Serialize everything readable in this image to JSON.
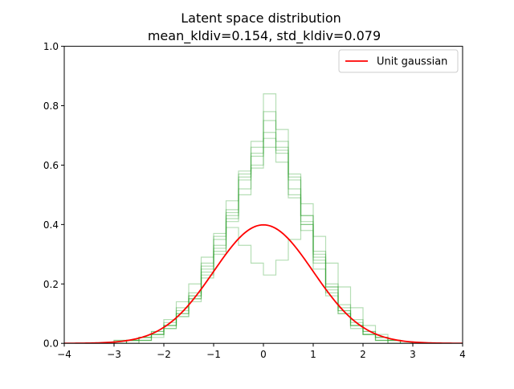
{
  "figure": {
    "title_line1": "Latent space distribution",
    "title_line2": "mean_kldiv=0.154, std_kldiv=0.079"
  },
  "chart_data": {
    "type": "line",
    "title": "Latent space distribution\nmean_kldiv=0.154, std_kldiv=0.079",
    "xlabel": "",
    "ylabel": "",
    "xlim": [
      -4,
      4
    ],
    "ylim": [
      0,
      1.0
    ],
    "xticks": [
      "−4",
      "−3",
      "−2",
      "−1",
      "0",
      "1",
      "2",
      "3",
      "4"
    ],
    "yticks": [
      "0.0",
      "0.2",
      "0.4",
      "0.6",
      "0.8",
      "1.0"
    ],
    "grid": false,
    "legend": {
      "placement": "upper right",
      "entries": [
        "Unit gaussian"
      ]
    },
    "colors": {
      "gaussian": "#ff0000",
      "histograms": "#2ca02c",
      "histogram_alpha": 0.35
    },
    "series": [
      {
        "name": "Unit gaussian",
        "kind": "line",
        "mean": 0,
        "std": 1,
        "x": [
          -4,
          -3.5,
          -3,
          -2.5,
          -2,
          -1.5,
          -1,
          -0.5,
          0,
          0.5,
          1,
          1.5,
          2,
          2.5,
          3,
          3.5,
          4
        ],
        "y": [
          0.0001,
          0.0009,
          0.0044,
          0.0175,
          0.054,
          0.1295,
          0.242,
          0.3521,
          0.3989,
          0.3521,
          0.242,
          0.1295,
          0.054,
          0.0175,
          0.0044,
          0.0009,
          0.0001
        ]
      },
      {
        "kind": "step-histogram",
        "edges": [
          -3.0,
          -2.75,
          -2.5,
          -2.25,
          -2.0,
          -1.75,
          -1.5,
          -1.25,
          -1.0,
          -0.75,
          -0.5,
          -0.25,
          0.0,
          0.25,
          0.5,
          0.75,
          1.0,
          1.25,
          1.5,
          1.75,
          2.0,
          2.25,
          2.5,
          2.75,
          3.0
        ],
        "values": [
          0.01,
          0.0,
          0.02,
          0.03,
          0.06,
          0.11,
          0.16,
          0.25,
          0.35,
          0.45,
          0.57,
          0.68,
          0.84,
          0.72,
          0.56,
          0.43,
          0.29,
          0.19,
          0.12,
          0.07,
          0.04,
          0.02,
          0.01,
          0.0
        ]
      },
      {
        "kind": "step-histogram",
        "edges": [
          -3.0,
          -2.75,
          -2.5,
          -2.25,
          -2.0,
          -1.75,
          -1.5,
          -1.25,
          -1.0,
          -0.75,
          -0.5,
          -0.25,
          0.0,
          0.25,
          0.5,
          0.75,
          1.0,
          1.25,
          1.5,
          1.75,
          2.0,
          2.25,
          2.5,
          2.75,
          3.0
        ],
        "values": [
          0.0,
          0.01,
          0.01,
          0.02,
          0.05,
          0.09,
          0.14,
          0.22,
          0.32,
          0.43,
          0.55,
          0.63,
          0.78,
          0.66,
          0.52,
          0.4,
          0.27,
          0.17,
          0.11,
          0.06,
          0.03,
          0.02,
          0.01,
          0.0
        ]
      },
      {
        "kind": "step-histogram",
        "edges": [
          -3.0,
          -2.75,
          -2.5,
          -2.25,
          -2.0,
          -1.75,
          -1.5,
          -1.25,
          -1.0,
          -0.75,
          -0.5,
          -0.25,
          0.0,
          0.25,
          0.5,
          0.75,
          1.0,
          1.25,
          1.5,
          1.75,
          2.0,
          2.25,
          2.5,
          2.75,
          3.0
        ],
        "values": [
          0.0,
          0.01,
          0.02,
          0.03,
          0.06,
          0.1,
          0.15,
          0.24,
          0.3,
          0.41,
          0.52,
          0.6,
          0.71,
          0.64,
          0.49,
          0.38,
          0.25,
          0.16,
          0.1,
          0.06,
          0.03,
          0.01,
          0.0,
          0.0
        ]
      },
      {
        "kind": "step-histogram",
        "edges": [
          -3.0,
          -2.75,
          -2.5,
          -2.25,
          -2.0,
          -1.75,
          -1.5,
          -1.25,
          -1.0,
          -0.75,
          -0.5,
          -0.25,
          0.0,
          0.25,
          0.5,
          0.75,
          1.0,
          1.25,
          1.5,
          1.75,
          2.0,
          2.25,
          2.5,
          2.75,
          3.0
        ],
        "values": [
          0.01,
          0.01,
          0.02,
          0.04,
          0.07,
          0.12,
          0.17,
          0.26,
          0.33,
          0.42,
          0.5,
          0.59,
          0.66,
          0.61,
          0.5,
          0.41,
          0.3,
          0.2,
          0.13,
          0.08,
          0.04,
          0.02,
          0.01,
          0.0
        ]
      },
      {
        "kind": "step-histogram",
        "edges": [
          -3.0,
          -2.75,
          -2.5,
          -2.25,
          -2.0,
          -1.75,
          -1.5,
          -1.25,
          -1.0,
          -0.75,
          -0.5,
          -0.25,
          0.0,
          0.25,
          0.5,
          0.75,
          1.0,
          1.25,
          1.5,
          1.75,
          2.0,
          2.25,
          2.5,
          2.75,
          3.0
        ],
        "values": [
          0.0,
          0.01,
          0.02,
          0.04,
          0.08,
          0.14,
          0.2,
          0.29,
          0.37,
          0.39,
          0.33,
          0.27,
          0.23,
          0.28,
          0.35,
          0.4,
          0.36,
          0.27,
          0.19,
          0.12,
          0.06,
          0.03,
          0.01,
          0.0
        ]
      },
      {
        "kind": "step-histogram",
        "edges": [
          -3.0,
          -2.75,
          -2.5,
          -2.25,
          -2.0,
          -1.75,
          -1.5,
          -1.25,
          -1.0,
          -0.75,
          -0.5,
          -0.25,
          0.0,
          0.25,
          0.5,
          0.75,
          1.0,
          1.25,
          1.5,
          1.75,
          2.0,
          2.25,
          2.5,
          2.75,
          3.0
        ],
        "values": [
          0.0,
          0.01,
          0.01,
          0.03,
          0.06,
          0.1,
          0.16,
          0.27,
          0.36,
          0.48,
          0.58,
          0.64,
          0.69,
          0.65,
          0.57,
          0.47,
          0.31,
          0.19,
          0.11,
          0.06,
          0.03,
          0.01,
          0.0,
          0.0
        ]
      },
      {
        "kind": "step-histogram",
        "edges": [
          -3.0,
          -2.75,
          -2.5,
          -2.25,
          -2.0,
          -1.75,
          -1.5,
          -1.25,
          -1.0,
          -0.75,
          -0.5,
          -0.25,
          0.0,
          0.25,
          0.5,
          0.75,
          1.0,
          1.25,
          1.5,
          1.75,
          2.0,
          2.25,
          2.5,
          2.75,
          3.0
        ],
        "values": [
          0.0,
          0.0,
          0.01,
          0.03,
          0.05,
          0.09,
          0.15,
          0.23,
          0.31,
          0.44,
          0.56,
          0.66,
          0.75,
          0.68,
          0.55,
          0.43,
          0.28,
          0.18,
          0.1,
          0.05,
          0.03,
          0.01,
          0.0,
          0.0
        ]
      }
    ]
  }
}
